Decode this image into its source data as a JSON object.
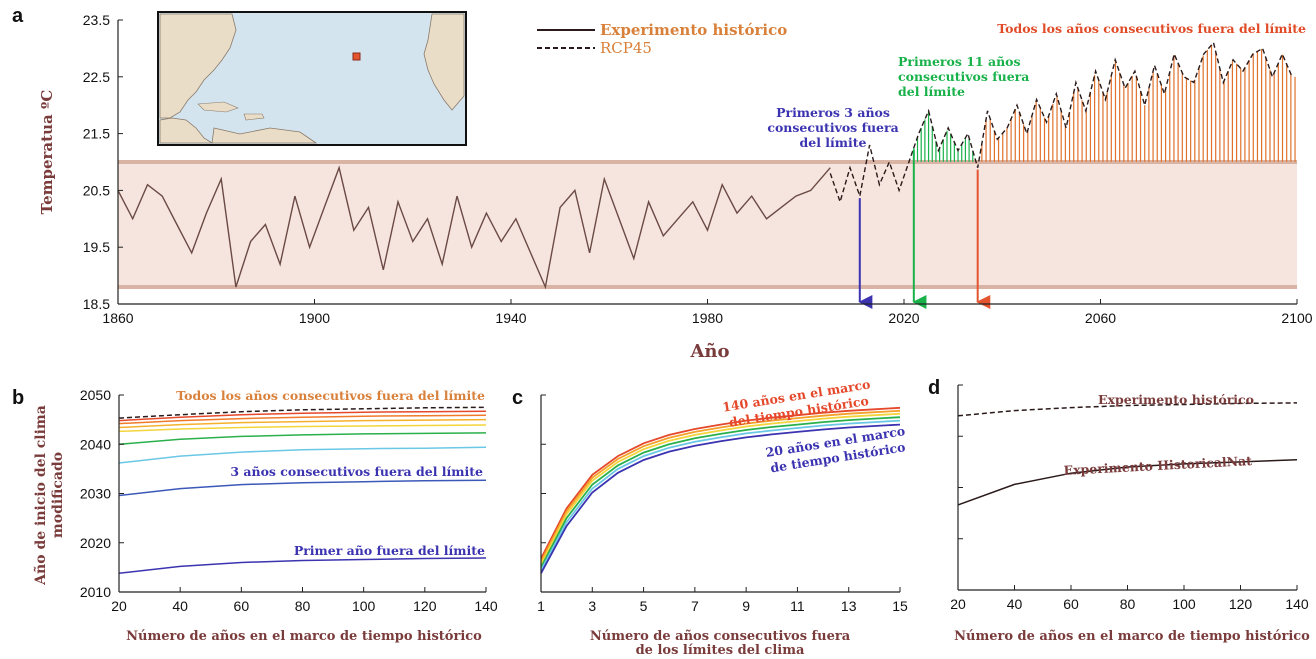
{
  "colors": {
    "band_fill": "#f6e5df",
    "band_edge": "#d9b3a4",
    "historical_line": "#6b4a44",
    "rcp_line": "#2b1a1a",
    "blue": "#3b33b0",
    "green": "#19b24a",
    "red": "#e4542f",
    "orange_spikes": "#e0722c",
    "annot_orange": "#d9803a",
    "annot_red": "#e04a26",
    "axis_label": "#7a3b3b"
  },
  "chart_data": [
    {
      "id": "a",
      "panel_letter": "a",
      "type": "line",
      "xlabel": "Año",
      "ylabel": "Temperatua ºC",
      "xlim": [
        1860,
        2100
      ],
      "ylim": [
        18.5,
        23.5
      ],
      "xticks": [
        "1860",
        "1900",
        "1940",
        "1980",
        "2020",
        "2060",
        "2100"
      ],
      "yticks": [
        "18.5",
        "19.5",
        "20.5",
        "21.5",
        "22.5",
        "23.5"
      ],
      "band": [
        18.8,
        21.0
      ],
      "legend": [
        {
          "label": "Experimento histórico",
          "style": "solid"
        },
        {
          "label": "RCP45",
          "style": "dashed"
        }
      ],
      "historical_series": {
        "name": "Experimento histórico",
        "x": [
          1860,
          1863,
          1866,
          1869,
          1872,
          1875,
          1878,
          1881,
          1884,
          1887,
          1890,
          1893,
          1896,
          1899,
          1902,
          1905,
          1908,
          1911,
          1914,
          1917,
          1920,
          1923,
          1926,
          1929,
          1932,
          1935,
          1938,
          1941,
          1944,
          1947,
          1950,
          1953,
          1956,
          1959,
          1962,
          1965,
          1968,
          1971,
          1974,
          1977,
          1980,
          1983,
          1986,
          1989,
          1992,
          1995,
          1998,
          2001,
          2005
        ],
        "y": [
          20.5,
          20.0,
          20.6,
          20.4,
          19.9,
          19.4,
          20.1,
          20.7,
          18.8,
          19.6,
          19.9,
          19.2,
          20.4,
          19.5,
          20.2,
          20.9,
          19.8,
          20.2,
          19.1,
          20.3,
          19.6,
          20.0,
          19.2,
          20.4,
          19.5,
          20.1,
          19.6,
          20.0,
          19.4,
          18.8,
          20.2,
          20.5,
          19.4,
          20.7,
          20.0,
          19.3,
          20.3,
          19.7,
          20.0,
          20.3,
          19.8,
          20.6,
          20.1,
          20.4,
          20.0,
          20.2,
          20.4,
          20.5,
          20.9
        ]
      },
      "rcp_series": {
        "name": "RCP45",
        "x": [
          2005,
          2007,
          2009,
          2011,
          2013,
          2015,
          2017,
          2019,
          2021,
          2023,
          2025,
          2027,
          2029,
          2031,
          2033,
          2035,
          2037,
          2039,
          2041,
          2043,
          2045,
          2047,
          2049,
          2051,
          2053,
          2055,
          2057,
          2059,
          2061,
          2063,
          2065,
          2067,
          2069,
          2071,
          2073,
          2075,
          2077,
          2079,
          2081,
          2083,
          2085,
          2087,
          2089,
          2091,
          2093,
          2095,
          2097,
          2099
        ],
        "y": [
          20.8,
          20.3,
          20.9,
          20.4,
          21.3,
          20.6,
          21.0,
          20.5,
          21.0,
          21.5,
          21.9,
          21.2,
          21.6,
          21.2,
          21.5,
          20.9,
          21.9,
          21.4,
          21.6,
          22.0,
          21.5,
          22.1,
          21.7,
          22.2,
          21.6,
          22.4,
          21.9,
          22.6,
          22.1,
          22.8,
          22.3,
          22.6,
          22.0,
          22.7,
          22.2,
          22.9,
          22.5,
          22.4,
          22.9,
          23.1,
          22.4,
          22.8,
          22.6,
          22.9,
          23.0,
          22.5,
          22.9,
          22.5
        ]
      },
      "arrows": [
        {
          "year": 2011,
          "color": "#3b33b0",
          "label_lines": [
            "Primeros 3 años",
            "consecutivos fuera",
            "del límite"
          ]
        },
        {
          "year": 2022,
          "color": "#19b24a",
          "label_lines": [
            "Primeros 11 años",
            "consecutivos fuera",
            "del límite"
          ]
        },
        {
          "year": 2035,
          "color": "#e4542f",
          "label_lines": [
            "Todos los años consecutivos fuera del límite"
          ]
        }
      ],
      "first_exceed_year": 2011,
      "green_span": [
        2022,
        2034
      ],
      "orange_span": [
        2035,
        2100
      ]
    },
    {
      "id": "b",
      "panel_letter": "b",
      "type": "line",
      "xlabel": "Número de años en el marco de tiempo histórico",
      "ylabel_lines": [
        "Año de inicio del clima",
        "modificado"
      ],
      "xlim": [
        20,
        140
      ],
      "ylim": [
        2010,
        2050
      ],
      "xticks": [
        "20",
        "40",
        "60",
        "80",
        "100",
        "120",
        "140"
      ],
      "yticks": [
        "2010",
        "2020",
        "2030",
        "2040",
        "2050"
      ],
      "x": [
        20,
        40,
        60,
        80,
        100,
        120,
        140
      ],
      "series": [
        {
          "color": "#2b1a1a",
          "dashed": true,
          "values": [
            2045.3,
            2046.0,
            2046.6,
            2047.0,
            2047.2,
            2047.4,
            2047.5
          ]
        },
        {
          "color": "#e5482a",
          "values": [
            2044.8,
            2045.5,
            2046.0,
            2046.3,
            2046.5,
            2046.6,
            2046.7
          ]
        },
        {
          "color": "#f07a2a",
          "values": [
            2044.2,
            2044.8,
            2045.2,
            2045.5,
            2045.7,
            2045.8,
            2045.9
          ]
        },
        {
          "color": "#f6b02c",
          "values": [
            2043.4,
            2044.0,
            2044.4,
            2044.6,
            2044.8,
            2044.9,
            2045.0
          ]
        },
        {
          "color": "#f3d43a",
          "values": [
            2042.6,
            2043.1,
            2043.4,
            2043.6,
            2043.7,
            2043.8,
            2043.9
          ]
        },
        {
          "color": "#2ab04a",
          "values": [
            2040.0,
            2041.0,
            2041.6,
            2041.9,
            2042.1,
            2042.2,
            2042.3
          ]
        },
        {
          "color": "#6ac7e6",
          "values": [
            2036.2,
            2037.6,
            2038.4,
            2038.9,
            2039.1,
            2039.2,
            2039.4
          ]
        },
        {
          "color": "#3b58b8",
          "values": [
            2029.6,
            2031.0,
            2031.8,
            2032.2,
            2032.4,
            2032.6,
            2032.7
          ]
        },
        {
          "color": "#3b33b0",
          "values": [
            2013.8,
            2015.2,
            2016.0,
            2016.4,
            2016.6,
            2016.8,
            2016.9
          ]
        }
      ],
      "annotations": [
        {
          "text": "Todos los años consecutivos fuera del límite",
          "color": "#d9803a"
        },
        {
          "text": "3 años consecutivos fuera del límite",
          "color": "#3b33b0"
        },
        {
          "text": "Primer año fuera del límite",
          "color": "#3b33b0"
        }
      ]
    },
    {
      "id": "c",
      "panel_letter": "c",
      "type": "line",
      "xlabel_lines": [
        "Número de años consecutivos fuera",
        "de los límites del clima"
      ],
      "xlim": [
        1,
        15
      ],
      "ylim": [
        2010,
        2050
      ],
      "xticks": [
        "1",
        "3",
        "5",
        "7",
        "9",
        "11",
        "13",
        "15"
      ],
      "x": [
        1,
        2,
        3,
        4,
        5,
        6,
        7,
        8,
        9,
        10,
        11,
        12,
        13,
        14,
        15
      ],
      "series": [
        {
          "color": "#e5482a",
          "values": [
            2016.8,
            2027.0,
            2033.8,
            2037.6,
            2040.2,
            2041.9,
            2043.1,
            2044.0,
            2044.8,
            2045.4,
            2045.9,
            2046.4,
            2046.8,
            2047.1,
            2047.4
          ]
        },
        {
          "color": "#f4a02a",
          "values": [
            2016.2,
            2026.4,
            2033.2,
            2037.0,
            2039.6,
            2041.3,
            2042.5,
            2043.4,
            2044.2,
            2044.8,
            2045.3,
            2045.8,
            2046.2,
            2046.5,
            2046.8
          ]
        },
        {
          "color": "#f3d43a",
          "values": [
            2015.6,
            2025.8,
            2032.6,
            2036.4,
            2039.0,
            2040.7,
            2041.9,
            2042.8,
            2043.6,
            2044.2,
            2044.7,
            2045.2,
            2045.6,
            2045.9,
            2046.2
          ]
        },
        {
          "color": "#2ab04a",
          "values": [
            2015.0,
            2025.0,
            2031.8,
            2035.7,
            2038.3,
            2040.0,
            2041.2,
            2042.1,
            2042.9,
            2043.5,
            2044.0,
            2044.5,
            2044.9,
            2045.2,
            2045.5
          ]
        },
        {
          "color": "#6ac7e6",
          "values": [
            2014.4,
            2024.2,
            2031.0,
            2035.0,
            2037.6,
            2039.3,
            2040.5,
            2041.4,
            2042.2,
            2042.8,
            2043.3,
            2043.8,
            2044.2,
            2044.5,
            2044.8
          ]
        },
        {
          "color": "#3b33b0",
          "values": [
            2013.8,
            2023.4,
            2030.2,
            2034.2,
            2036.8,
            2038.5,
            2039.7,
            2040.6,
            2041.4,
            2042.0,
            2042.5,
            2043.0,
            2043.4,
            2043.7,
            2044.0
          ]
        }
      ],
      "annotations": [
        {
          "lines": [
            "140 años en el marco",
            "del tiempo histórico"
          ],
          "color": "#e5482a"
        },
        {
          "lines": [
            "20 años en el marco",
            "de tiempo histórico"
          ],
          "color": "#3b33b0"
        }
      ]
    },
    {
      "id": "d",
      "panel_letter": "d",
      "type": "line",
      "xlabel": "Número de años en el marco de tiempo histórico",
      "xlim": [
        20,
        140
      ],
      "ylim": [
        2010,
        2050
      ],
      "xticks": [
        "20",
        "40",
        "60",
        "80",
        "100",
        "120",
        "140"
      ],
      "x": [
        20,
        40,
        60,
        80,
        100,
        120,
        140
      ],
      "series": [
        {
          "name": "Experimento histórico",
          "color": "#2b1a1a",
          "dashed": true,
          "values": [
            2044.0,
            2045.0,
            2045.6,
            2046.0,
            2046.2,
            2046.4,
            2046.5
          ]
        },
        {
          "name": "Experimento HistoricalNat",
          "color": "#2b1a1a",
          "values": [
            2026.6,
            2030.6,
            2032.8,
            2034.0,
            2034.6,
            2035.0,
            2035.4
          ]
        }
      ],
      "annotations": [
        {
          "text": "Experimento histórico",
          "color": "#7a3b3b"
        },
        {
          "text": "Experimento HistoricalNat",
          "color": "#7a3b3b"
        }
      ]
    }
  ]
}
